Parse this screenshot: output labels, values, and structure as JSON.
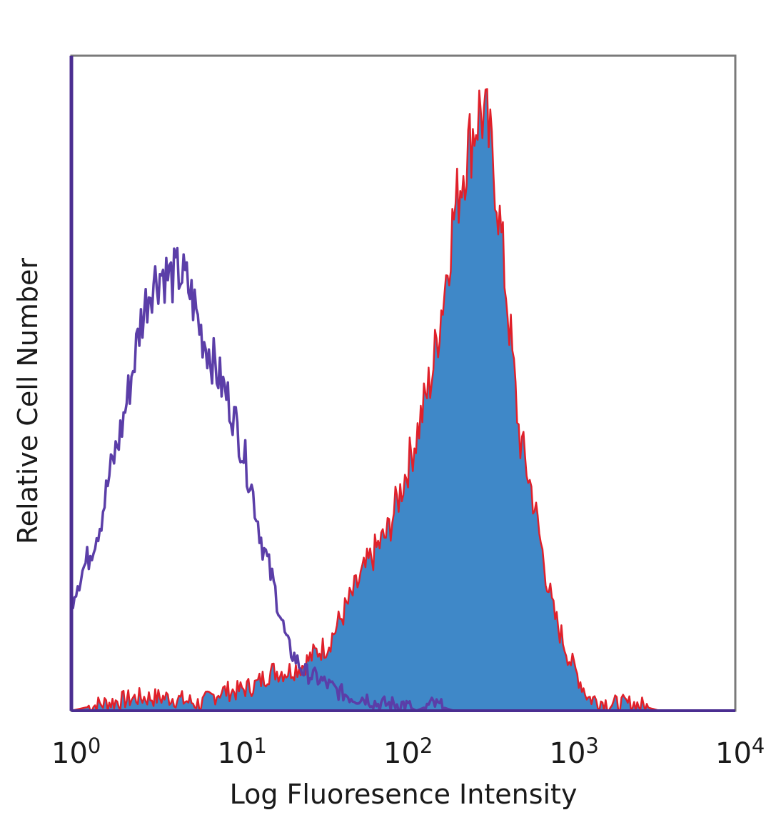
{
  "chart_data": {
    "type": "area",
    "title": "",
    "xlabel": "Log Fluoresence Intensity",
    "ylabel": "Relative Cell Number",
    "x_scale": "log",
    "xlim": [
      1,
      10000
    ],
    "ylim": [
      0,
      100
    ],
    "grid": false,
    "x_ticks": [
      {
        "base": "10",
        "exp": "0"
      },
      {
        "base": "10",
        "exp": "1"
      },
      {
        "base": "10",
        "exp": "2"
      },
      {
        "base": "10",
        "exp": "3"
      },
      {
        "base": "10",
        "exp": "4"
      }
    ],
    "series": [
      {
        "style": "filled",
        "fill_color": "#3f88c8",
        "line_color": "#e0202a",
        "x": [
          1,
          1.5,
          2.5,
          4,
          6,
          8,
          10,
          13,
          16,
          20,
          25,
          30,
          35,
          40,
          50,
          60,
          70,
          80,
          100,
          120,
          150,
          180,
          200,
          230,
          260,
          290,
          320,
          360,
          400,
          450,
          500,
          600,
          700,
          800,
          1000,
          1300,
          1800,
          2500,
          3500,
          5000,
          10000
        ],
        "y": [
          0,
          1,
          2,
          2,
          1,
          3,
          3,
          4,
          6,
          6,
          7,
          9,
          10,
          13,
          18,
          22,
          25,
          27,
          35,
          42,
          52,
          66,
          75,
          83,
          88,
          92,
          89,
          81,
          69,
          55,
          42,
          33,
          23,
          15,
          8,
          2,
          1,
          1,
          0,
          0,
          0
        ]
      },
      {
        "style": "outline",
        "line_color": "#5b3ea8",
        "x": [
          1,
          1.1,
          1.25,
          1.5,
          1.7,
          2,
          2.3,
          2.6,
          3,
          3.5,
          4,
          4.5,
          5,
          5.5,
          6,
          7,
          8,
          9,
          10,
          12,
          14,
          17,
          20,
          25,
          30,
          35,
          40,
          50,
          60,
          70,
          80,
          100,
          120,
          150,
          200,
          300,
          10000
        ],
        "y": [
          17,
          20,
          23,
          29,
          36,
          43,
          51,
          59,
          65,
          67,
          66,
          67,
          65,
          62,
          58,
          54,
          50,
          47,
          43,
          35,
          26,
          18,
          10,
          6,
          5,
          4,
          3,
          2,
          2,
          1,
          1,
          1,
          0,
          1,
          0,
          0,
          0
        ]
      }
    ]
  }
}
